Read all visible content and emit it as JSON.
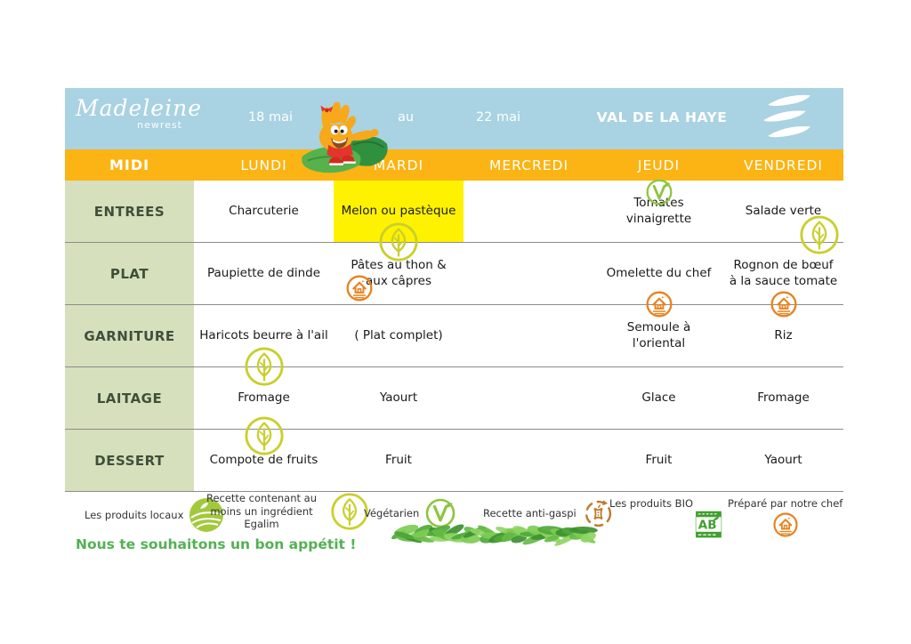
{
  "header": {
    "brand": "Madeleine",
    "brand_sub": "newrest",
    "date_start": "18 mai",
    "date_separator": "au",
    "date_end": "22 mai",
    "site": "VAL DE LA HAYE"
  },
  "menu": {
    "meal_label": "MIDI",
    "days": [
      "LUNDI",
      "MARDI",
      "MERCREDI",
      "JEUDI",
      "VENDREDI"
    ],
    "rows": [
      {
        "label": "ENTREES",
        "cells": [
          {
            "text": "Charcuterie"
          },
          {
            "text": "Melon ou pastèque",
            "highlight": true,
            "icons": [
              {
                "type": "egalim",
                "pos": "bc"
              }
            ]
          },
          {
            "text": ""
          },
          {
            "text": "Tomates vinaigrette",
            "icons": [
              {
                "type": "vegetarien",
                "pos": "tc"
              }
            ]
          },
          {
            "text": "Salade verte",
            "icons": [
              {
                "type": "egalim",
                "pos": "br"
              }
            ]
          }
        ]
      },
      {
        "label": "PLAT",
        "cells": [
          {
            "text": "Paupiette de dinde"
          },
          {
            "text": "Pâtes au thon & aux câpres",
            "icons": [
              {
                "type": "chef",
                "pos": "lb"
              }
            ]
          },
          {
            "text": ""
          },
          {
            "text": "Omelette du chef",
            "icons": [
              {
                "type": "chef",
                "pos": "bc"
              }
            ]
          },
          {
            "text": "Rognon de bœuf à la sauce tomate",
            "icons": [
              {
                "type": "chef",
                "pos": "bc"
              }
            ]
          }
        ]
      },
      {
        "label": "GARNITURE",
        "cells": [
          {
            "text": "Haricots beurre à l'ail",
            "icons": [
              {
                "type": "egalim",
                "pos": "bc"
              }
            ]
          },
          {
            "text": "( Plat complet)"
          },
          {
            "text": ""
          },
          {
            "text": "Semoule à l'oriental"
          },
          {
            "text": "Riz"
          }
        ]
      },
      {
        "label": "LAITAGE",
        "cells": [
          {
            "text": "Fromage",
            "icons": [
              {
                "type": "egalim",
                "pos": "bc-lo"
              }
            ]
          },
          {
            "text": "Yaourt"
          },
          {
            "text": ""
          },
          {
            "text": "Glace"
          },
          {
            "text": "Fromage"
          }
        ]
      },
      {
        "label": "DESSERT",
        "cells": [
          {
            "text": "Compote de fruits"
          },
          {
            "text": "Fruit"
          },
          {
            "text": ""
          },
          {
            "text": "Fruit"
          },
          {
            "text": "Yaourt"
          }
        ]
      }
    ]
  },
  "legend": [
    {
      "label": "Les produits locaux",
      "icon": "local"
    },
    {
      "label": "Recette contenant au moins un ingrédient Egalim",
      "icon": "egalim"
    },
    {
      "label": "Végétarien",
      "icon": "vegetarien"
    },
    {
      "label": "Recette anti-gaspi",
      "icon": "antigaspi"
    },
    {
      "label": "Les produits BIO",
      "icon": "bio"
    },
    {
      "label": "Préparé par notre chef",
      "icon": "chef"
    }
  ],
  "footer": {
    "message": "Nous te souhaitons un bon appétit !"
  },
  "icons": {
    "egalim": "leaf-circle-icon",
    "vegetarien": "v-circle-icon",
    "chef": "house-circle-icon",
    "local": "field-circle-icon",
    "antigaspi": "anti-waste-circle-icon",
    "bio": "ab-organic-label-icon"
  },
  "colors": {
    "header_blue": "#A9D2E2",
    "band_orange": "#FBB414",
    "label_green": "#D6E0BD",
    "highlight_yellow": "#FFF200",
    "egalim_icon": "#C9CF2D",
    "vegetarien_icon": "#8CC63E",
    "chef_icon": "#E8821E",
    "local_icon": "#A2C93B",
    "antigaspi_icon": "#C07A2B",
    "bio_green": "#3FA02E",
    "footer_green": "#53B153"
  }
}
